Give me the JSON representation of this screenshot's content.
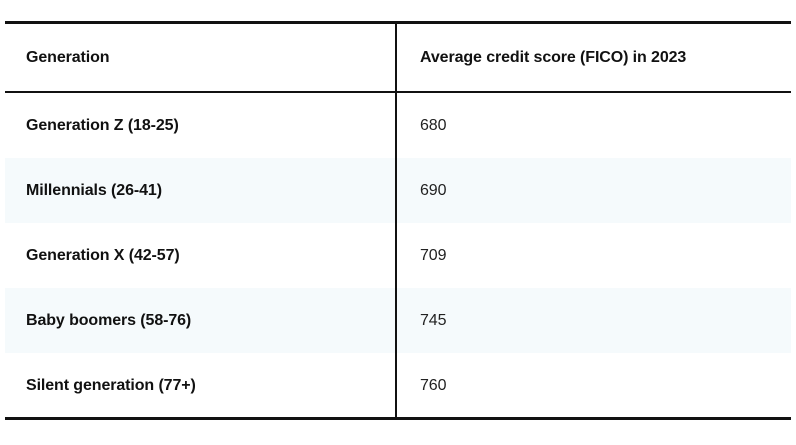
{
  "table": {
    "headers": [
      "Generation",
      "Average credit score (FICO) in 2023"
    ],
    "rows": [
      {
        "generation": "Generation Z (18-25)",
        "score": "680"
      },
      {
        "generation": "Millennials (26-41)",
        "score": "690"
      },
      {
        "generation": "Generation X (42-57)",
        "score": "709"
      },
      {
        "generation": "Baby boomers (58-76)",
        "score": "745"
      },
      {
        "generation": "Silent generation (77+)",
        "score": "760"
      }
    ]
  },
  "colors": {
    "border": "#111111",
    "stripe": "#f5fafc",
    "text": "#111111"
  }
}
